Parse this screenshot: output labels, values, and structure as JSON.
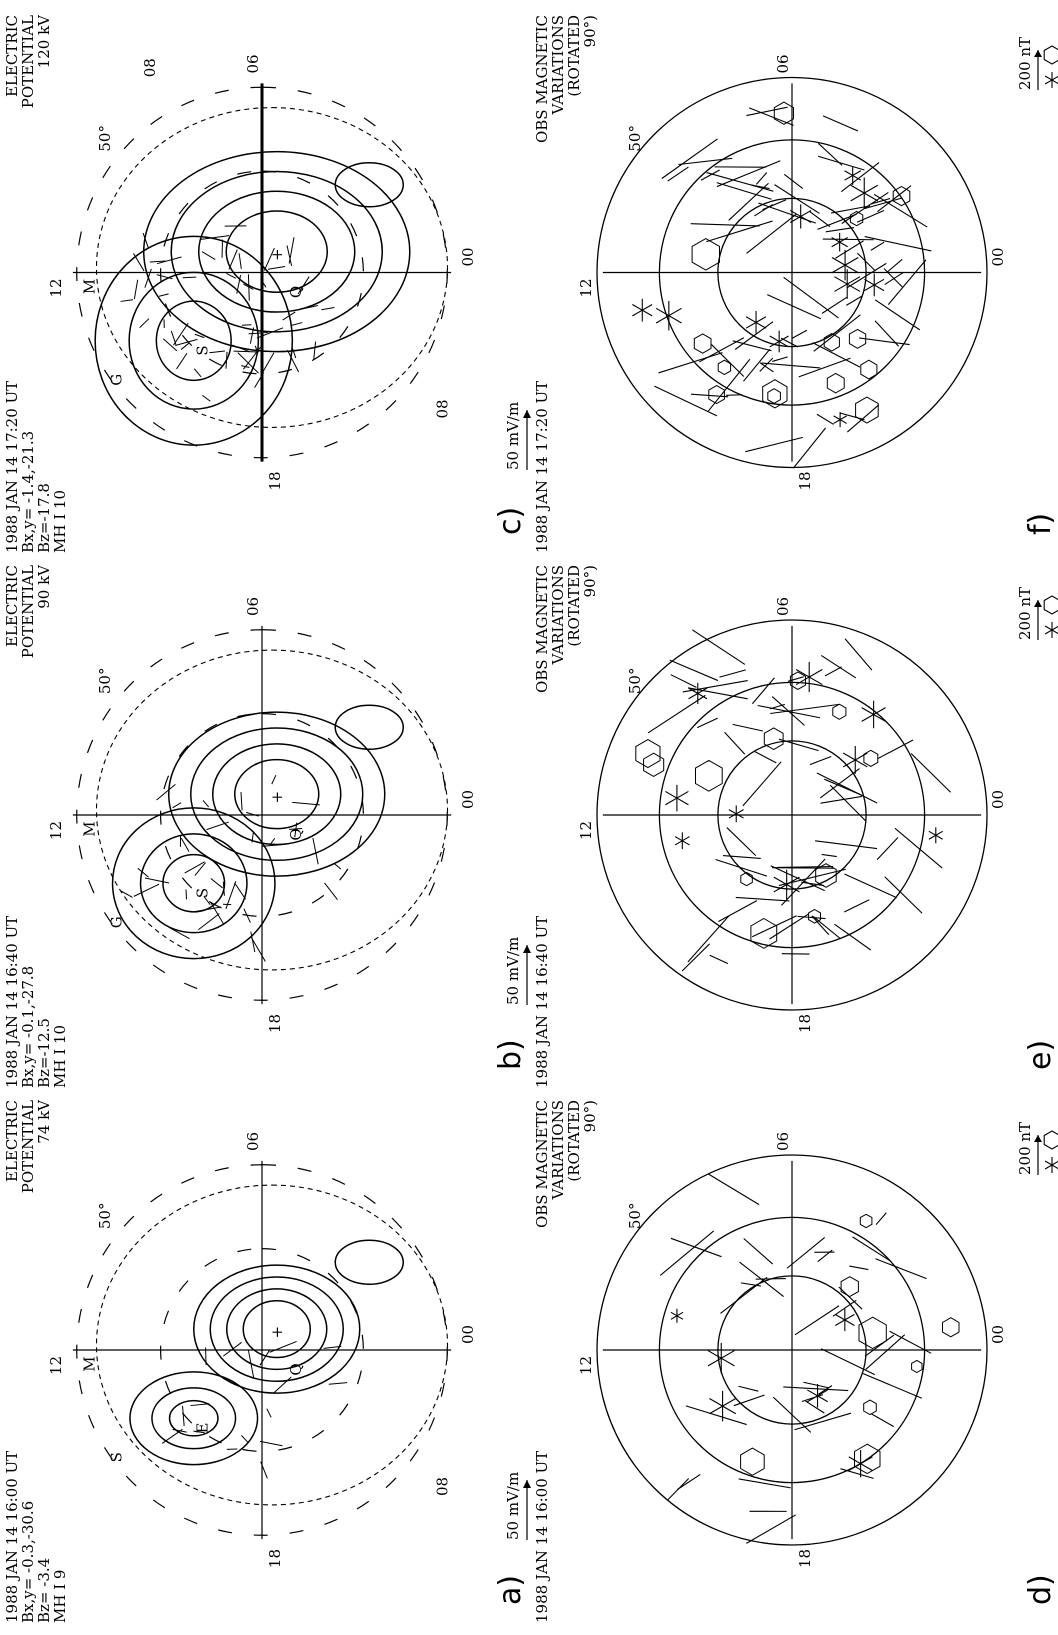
{
  "figure": {
    "orientation": "rotated 90 degrees counter-clockwise",
    "panels": [
      {
        "id": "a",
        "kind": "potential",
        "header": [
          "1988 JAN 14 16:00 UT",
          "Bx,y= -0.3,-30.6",
          "Bz= -3.4",
          "MH I  9"
        ],
        "title": [
          "ELECTRIC",
          "POTENTIAL",
          "74 kV"
        ],
        "panel_label": "a)",
        "scale_label": "50 mV/m",
        "latitude_label": "50°",
        "mlt": {
          "top": "12",
          "bottom": "00",
          "left": "18",
          "right": "06"
        },
        "site_letters": [
          "M",
          "S",
          "E",
          "Q"
        ],
        "bottom_letter": "08"
      },
      {
        "id": "b",
        "kind": "potential",
        "header": [
          "1988 JAN 14 16:40 UT",
          "Bx,y= -0.1,-27.8",
          "Bz=-12.5",
          "MH I 10"
        ],
        "title": [
          "ELECTRIC",
          "POTENTIAL",
          "90 kV"
        ],
        "panel_label": "b)",
        "scale_label": "50 mV/m",
        "latitude_label": "50°",
        "mlt": {
          "top": "12",
          "bottom": "00",
          "left": "18",
          "right": "06"
        },
        "site_letters": [
          "M",
          "G",
          "S",
          "Q"
        ],
        "bottom_letter": ""
      },
      {
        "id": "c",
        "kind": "potential",
        "header": [
          "1988 JAN 14 17:20 UT",
          "Bx,y= -1.4,-21.3",
          "Bz=-17.8",
          "MH I 10"
        ],
        "title": [
          "ELECTRIC",
          "POTENTIAL",
          "120 kV"
        ],
        "panel_label": "c)",
        "scale_label": "50 mV/m",
        "latitude_label": "50°",
        "mlt": {
          "top": "12",
          "bottom": "00",
          "left": "18",
          "right": "06"
        },
        "site_letters": [
          "M",
          "G",
          "S",
          "Q"
        ],
        "bottom_letter": "08",
        "extra_letter": "08"
      },
      {
        "id": "d",
        "kind": "observed",
        "header": [
          "1988 JAN 14 16:00 UT"
        ],
        "title": [
          "OBS MAGNETIC",
          "VARIATIONS",
          "(ROTATED",
          "90°)"
        ],
        "panel_label": "d)",
        "scale_label": "200 nT",
        "latitude_label": "50°",
        "mlt": {
          "top": "12",
          "bottom": "00",
          "left": "18",
          "right": "06"
        }
      },
      {
        "id": "e",
        "kind": "observed",
        "header": [
          "1988 JAN 14 16:40 UT"
        ],
        "title": [
          "OBS MAGNETIC",
          "VARIATIONS",
          "(ROTATED",
          "90°)"
        ],
        "panel_label": "e)",
        "scale_label": "200 nT",
        "latitude_label": "50°",
        "mlt": {
          "top": "12",
          "bottom": "00",
          "left": "18",
          "right": "06"
        }
      },
      {
        "id": "f",
        "kind": "observed",
        "header": [
          "1988 JAN 14 17:20 UT"
        ],
        "title": [
          "OBS MAGNETIC",
          "VARIATIONS",
          "(ROTATED",
          "90°)"
        ],
        "panel_label": "f)",
        "scale_label": "200 nT",
        "latitude_label": "50°",
        "mlt": {
          "top": "12",
          "bottom": "00",
          "left": "18",
          "right": "06"
        }
      }
    ]
  }
}
